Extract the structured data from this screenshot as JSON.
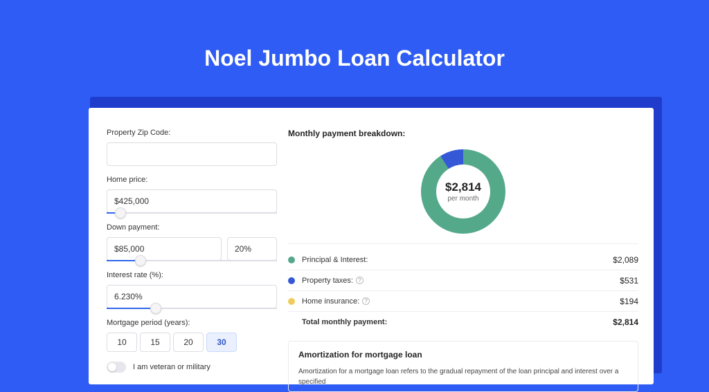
{
  "title": "Noel Jumbo Loan Calculator",
  "left": {
    "zip": {
      "label": "Property Zip Code:",
      "value": ""
    },
    "home_price": {
      "label": "Home price:",
      "value": "$425,000",
      "slider_pct": 8
    },
    "down_payment": {
      "label": "Down payment:",
      "amount": "$85,000",
      "pct": "20%",
      "slider_pct": 20
    },
    "interest_rate": {
      "label": "Interest rate (%):",
      "value": "6.230%",
      "slider_pct": 29
    },
    "mortgage_period": {
      "label": "Mortgage period (years):",
      "options": [
        "10",
        "15",
        "20",
        "30"
      ],
      "active_index": 3
    },
    "veteran": {
      "label": "I am veteran or military",
      "on": false
    }
  },
  "breakdown": {
    "title": "Monthly payment breakdown:",
    "center_value": "$2,814",
    "center_sub": "per month",
    "donut": {
      "segments": [
        {
          "color": "#54a98b",
          "pct": 74.3
        },
        {
          "color": "#3558d6",
          "pct": 18.9
        },
        {
          "color": "#f0cc5b",
          "pct": 6.8
        }
      ],
      "start_angle_deg": 60
    },
    "rows": [
      {
        "label": "Principal & Interest:",
        "value": "$2,089",
        "color": "#54a98b",
        "info": false
      },
      {
        "label": "Property taxes:",
        "value": "$531",
        "color": "#3558d6",
        "info": true
      },
      {
        "label": "Home insurance:",
        "value": "$194",
        "color": "#f0cc5b",
        "info": true
      }
    ],
    "total": {
      "label": "Total monthly payment:",
      "value": "$2,814"
    }
  },
  "amortization": {
    "title": "Amortization for mortgage loan",
    "text": "Amortization for a mortgage loan refers to the gradual repayment of the loan principal and interest over a specified"
  },
  "colors": {
    "page_bg": "#2f5cf4",
    "shadow": "#1f3ccc",
    "panel_bg": "#ffffff",
    "border": "#dcdce4",
    "slider_fill": "#2e66ea"
  }
}
